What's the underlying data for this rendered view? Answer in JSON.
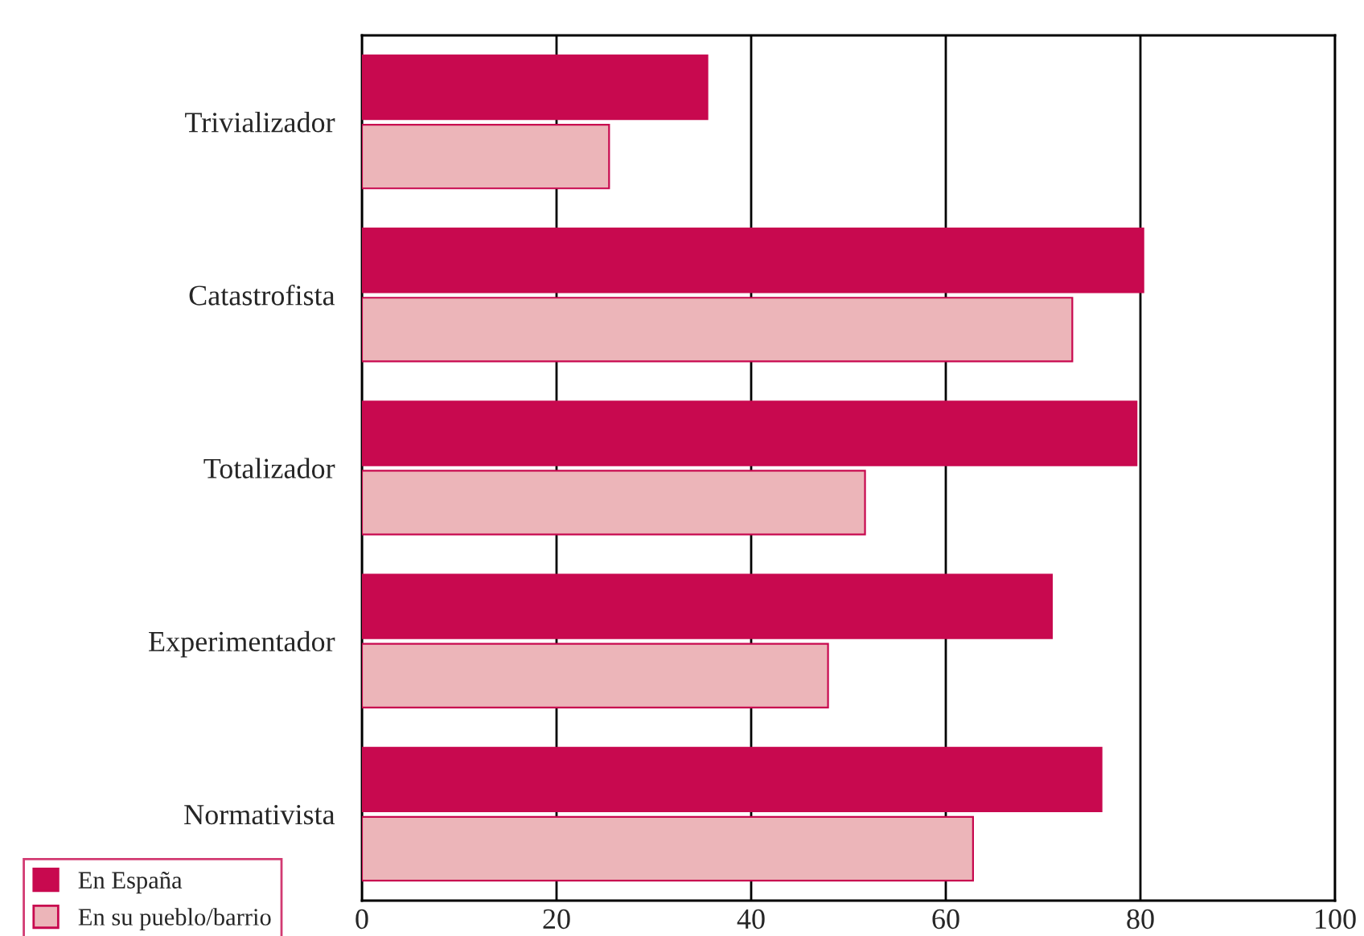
{
  "chart_data": {
    "type": "bar",
    "orientation": "horizontal",
    "categories": [
      "Trivializador",
      "Catastrofista",
      "Totalizador",
      "Experimentador",
      "Normativista"
    ],
    "series": [
      {
        "name": "En España",
        "color": "#c8094f",
        "values": [
          35.5,
          80.3,
          79.6,
          70.9,
          76
        ]
      },
      {
        "name": "En su pueblo/barrio",
        "color": "#ecb5b9",
        "values": [
          25.4,
          73,
          51.7,
          47.9,
          62.8
        ]
      }
    ],
    "xlim": [
      0,
      100
    ],
    "xticks": [
      0,
      20,
      40,
      60,
      80,
      100
    ],
    "grid": "x",
    "legend": "bottom left"
  }
}
